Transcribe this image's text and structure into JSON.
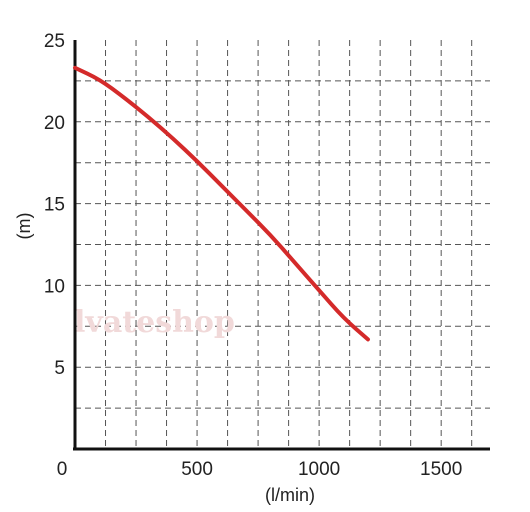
{
  "chart_data": {
    "type": "line",
    "title": "",
    "xlabel": "(l/min)",
    "ylabel": "(m)",
    "xlim": [
      0,
      1700
    ],
    "ylim": [
      0,
      25
    ],
    "x_ticks": [
      0,
      500,
      1000,
      1500
    ],
    "y_ticks": [
      5,
      10,
      15,
      20,
      25
    ],
    "grid": true,
    "series": [
      {
        "color": "#d42a2a",
        "x": [
          0,
          100,
          200,
          300,
          400,
          500,
          600,
          700,
          800,
          900,
          1000,
          1100,
          1200
        ],
        "y": [
          23.3,
          22.6,
          21.5,
          20.3,
          19.0,
          17.6,
          16.1,
          14.6,
          13.1,
          11.4,
          9.7,
          8.0,
          6.7
        ]
      }
    ]
  },
  "watermark": "lvateshop"
}
